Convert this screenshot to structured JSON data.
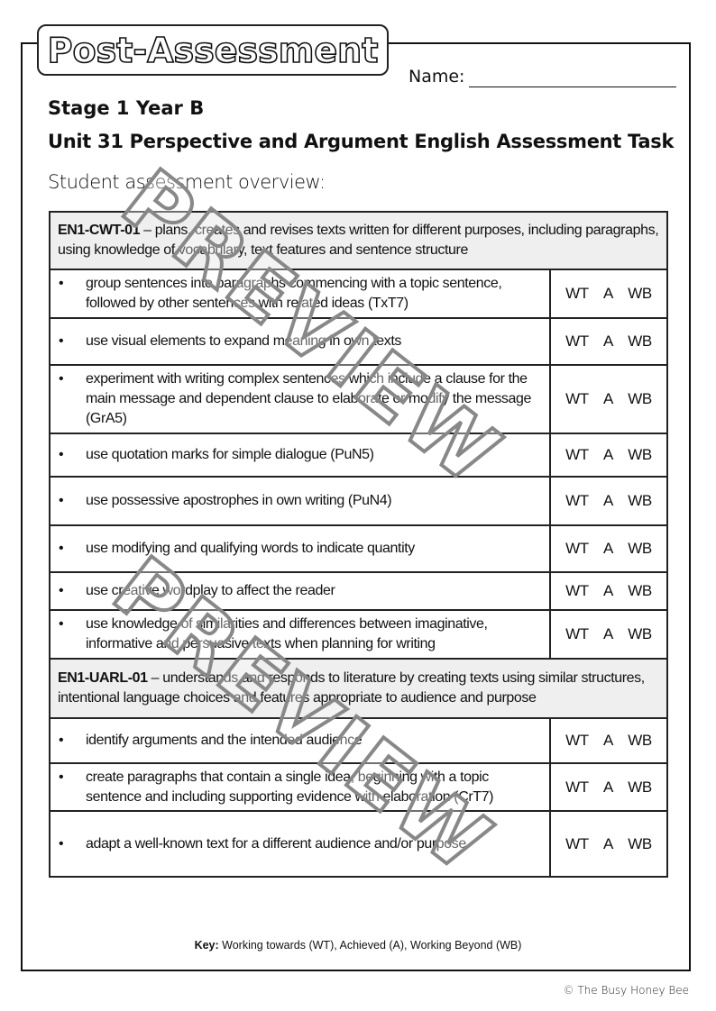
{
  "header": {
    "title": "Post-Assessment",
    "name_label": "Name:"
  },
  "stage": "Stage 1 Year B",
  "unit": "Unit 31 Perspective and Argument English Assessment Task",
  "overview_label": "Student assessment overview:",
  "rating_labels": [
    "WT",
    "A",
    "WB"
  ],
  "bullet": "•",
  "sections": [
    {
      "code": "EN1-CWT-01",
      "description": " – plans, creates and revises texts written for different purposes, including paragraphs, using knowledge of vocabulary, text features and sentence structure",
      "items": [
        "group sentences into paragraphs commencing with a topic sentence, followed by other sentences with related ideas (TxT7)",
        "use visual elements to expand meaning in own texts",
        "experiment with writing complex sentences which include a clause for the main message and dependent clause to elaborate or modify the message (GrA5)",
        "use quotation marks for simple dialogue (PuN5)",
        "use possessive apostrophes in own writing (PuN4)",
        "use modifying and qualifying words to indicate quantity",
        "use creative wordplay to affect the reader",
        "use knowledge of similarities and differences between imaginative, informative and persuasive texts when planning for writing"
      ]
    },
    {
      "code": "EN1-UARL-01",
      "description": " – understands and responds to literature by creating texts using similar structures, intentional language choices and features appropriate to audience and purpose",
      "items": [
        "identify arguments and the intended audience",
        "create paragraphs that contain a single idea, beginning with a topic sentence and including supporting evidence with elaboration (CrT7)",
        "adapt a well-known text for a different audience and/or purpose"
      ]
    }
  ],
  "key": {
    "label": "Key:",
    "text": " Working towards (WT), Achieved (A), Working Beyond (WB)"
  },
  "copyright": "© The Busy Honey Bee",
  "watermark": "PREVIEW"
}
